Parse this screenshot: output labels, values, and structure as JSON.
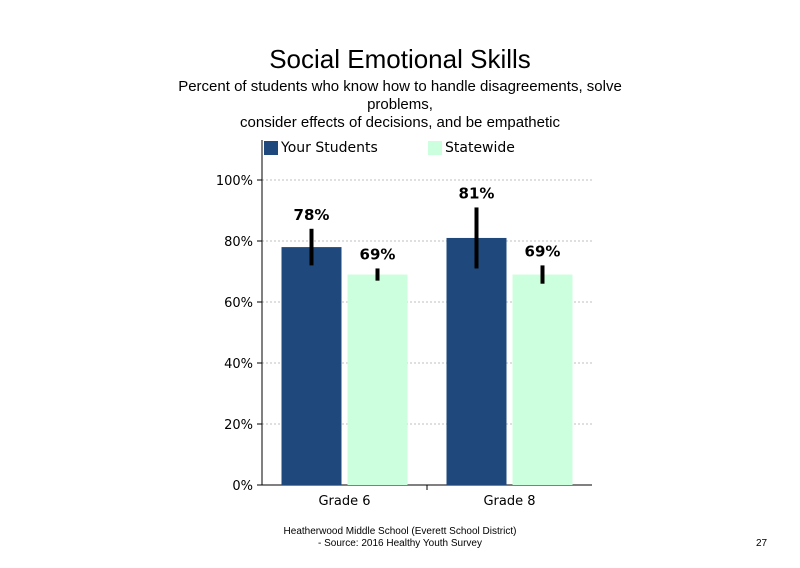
{
  "chart_data": {
    "type": "bar",
    "title": "Social Emotional Skills",
    "subtitle_lines": [
      "Percent of students who know how to handle disagreements, solve problems,",
      "consider effects of decisions, and be empathetic"
    ],
    "categories": [
      "Grade 6",
      "Grade 8"
    ],
    "series": [
      {
        "name": "Your Students",
        "values": [
          78,
          81
        ],
        "labels": [
          "78%",
          "81%"
        ],
        "error_low": [
          72,
          71
        ],
        "error_high": [
          84,
          91
        ],
        "color": "#1f497d"
      },
      {
        "name": "Statewide",
        "values": [
          69,
          69
        ],
        "labels": [
          "69%",
          "69%"
        ],
        "error_low": [
          67,
          66
        ],
        "error_high": [
          71,
          72
        ],
        "color": "#ccffdd"
      }
    ],
    "ylim": [
      0,
      100
    ],
    "yticks": [
      "0%",
      "20%",
      "40%",
      "60%",
      "80%",
      "100%"
    ],
    "ytick_values": [
      0,
      20,
      40,
      60,
      80,
      100
    ],
    "grid": true,
    "legend": "top"
  },
  "footer": {
    "line1": "Heatherwood Middle School (Everett School District)",
    "line2": "- Source: 2016 Healthy Youth Survey"
  },
  "page_number": "27"
}
